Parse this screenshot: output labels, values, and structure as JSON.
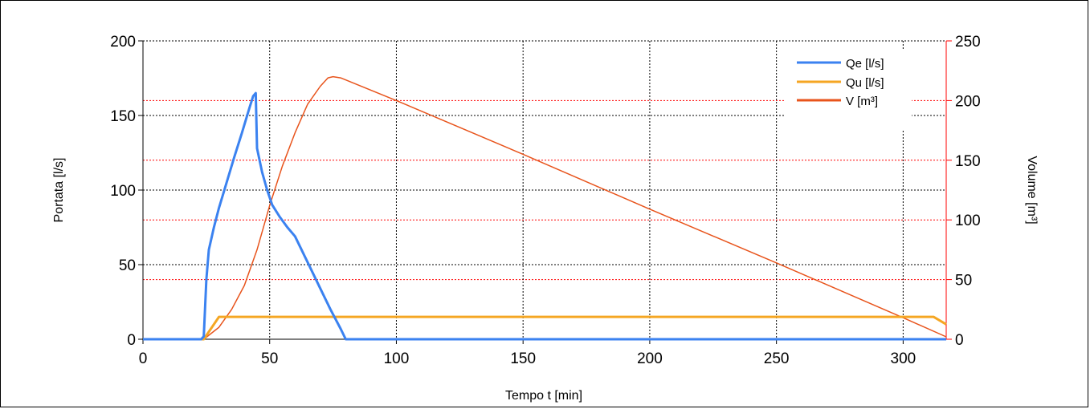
{
  "chart_data": {
    "type": "line",
    "xlabel": "Tempo t [min]",
    "ylabel": "Portata [l/s]",
    "y2label": "Volume [m³]",
    "xlim": [
      0,
      317
    ],
    "ylim": [
      0,
      200
    ],
    "y2lim": [
      0,
      250
    ],
    "xticks": [
      "0",
      "50",
      "100",
      "150",
      "200",
      "250",
      "300"
    ],
    "yticks": [
      "0",
      "50",
      "100",
      "150",
      "200"
    ],
    "y2ticks": [
      "0",
      "50",
      "100",
      "150",
      "200",
      "250"
    ],
    "legend_position": "top-right",
    "grid": {
      "x": true,
      "y_left": true,
      "y_right": true
    },
    "series": [
      {
        "name": "Qe [l/s]",
        "axis": "left",
        "color": "#3b82f0",
        "points": [
          [
            0,
            0
          ],
          [
            23,
            0
          ],
          [
            24,
            2
          ],
          [
            25,
            40
          ],
          [
            26,
            60
          ],
          [
            28,
            75
          ],
          [
            30,
            88
          ],
          [
            33,
            105
          ],
          [
            36,
            122
          ],
          [
            39,
            138
          ],
          [
            42,
            155
          ],
          [
            43.5,
            163
          ],
          [
            44.5,
            165
          ],
          [
            45,
            128
          ],
          [
            47,
            112
          ],
          [
            49,
            100
          ],
          [
            51,
            90
          ],
          [
            54,
            82
          ],
          [
            57,
            75
          ],
          [
            60,
            69
          ],
          [
            62,
            62
          ],
          [
            66,
            48
          ],
          [
            70,
            34
          ],
          [
            74,
            20
          ],
          [
            78,
            7
          ],
          [
            80,
            0
          ],
          [
            317,
            0
          ]
        ]
      },
      {
        "name": "Qu [l/s]",
        "axis": "left",
        "color": "#f5a623",
        "points": [
          [
            0,
            0
          ],
          [
            24,
            0
          ],
          [
            30,
            15
          ],
          [
            312,
            15
          ],
          [
            317,
            10
          ]
        ]
      },
      {
        "name": "V [m³]",
        "axis": "right",
        "color": "#e8541c",
        "points": [
          [
            0,
            0
          ],
          [
            24,
            0
          ],
          [
            30,
            10
          ],
          [
            35,
            25
          ],
          [
            40,
            45
          ],
          [
            45,
            75
          ],
          [
            50,
            112
          ],
          [
            55,
            145
          ],
          [
            60,
            173
          ],
          [
            65,
            197
          ],
          [
            70,
            212
          ],
          [
            73,
            219
          ],
          [
            75,
            220
          ],
          [
            78,
            219
          ],
          [
            100,
            200
          ],
          [
            150,
            155
          ],
          [
            200,
            109
          ],
          [
            250,
            64
          ],
          [
            300,
            18
          ],
          [
            317,
            2
          ]
        ]
      }
    ]
  }
}
